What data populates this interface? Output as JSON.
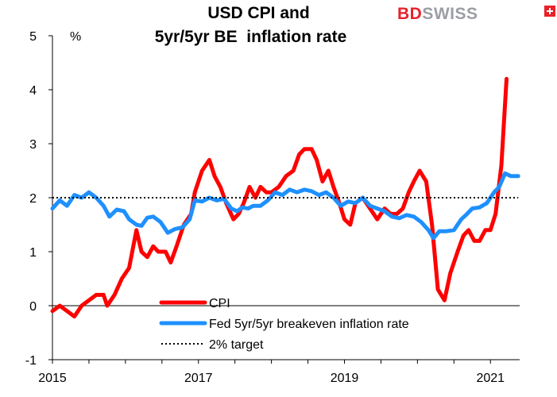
{
  "title_line1": "USD CPI and",
  "title_line2": "5yr/5yr BE  inflation rate",
  "logo": {
    "brand_part1": "BD",
    "brand_part2": "SWISS",
    "flag_icon": "swiss-cross-icon"
  },
  "colors": {
    "cpi": "#ff0000",
    "fed": "#1e90ff",
    "target": "#000000"
  },
  "chart_data": {
    "type": "line",
    "title": "USD CPI and 5yr/5yr BE  inflation rate",
    "ylabel": "%",
    "ylim": [
      -1,
      5
    ],
    "yticks": [
      -1,
      0,
      1,
      2,
      3,
      4,
      5
    ],
    "xlim": [
      2015.0,
      2021.4
    ],
    "xticks": [
      {
        "value": 2015,
        "label": "2015"
      },
      {
        "value": 2017,
        "label": "2017"
      },
      {
        "value": 2019,
        "label": "2019"
      },
      {
        "value": 2021,
        "label": "2021"
      }
    ],
    "grid": false,
    "legend_position": "bottom-center",
    "series": [
      {
        "name": "CPI",
        "color": "#ff0000",
        "points": [
          [
            2015.0,
            -0.1
          ],
          [
            2015.1,
            0.0
          ],
          [
            2015.2,
            -0.1
          ],
          [
            2015.3,
            -0.2
          ],
          [
            2015.4,
            0.0
          ],
          [
            2015.5,
            0.1
          ],
          [
            2015.6,
            0.2
          ],
          [
            2015.7,
            0.2
          ],
          [
            2015.75,
            0.0
          ],
          [
            2015.85,
            0.2
          ],
          [
            2015.95,
            0.5
          ],
          [
            2016.05,
            0.7
          ],
          [
            2016.15,
            1.4
          ],
          [
            2016.22,
            1.0
          ],
          [
            2016.3,
            0.9
          ],
          [
            2016.38,
            1.1
          ],
          [
            2016.45,
            1.0
          ],
          [
            2016.55,
            1.0
          ],
          [
            2016.62,
            0.8
          ],
          [
            2016.7,
            1.1
          ],
          [
            2016.8,
            1.5
          ],
          [
            2016.9,
            1.7
          ],
          [
            2016.95,
            2.1
          ],
          [
            2017.05,
            2.5
          ],
          [
            2017.15,
            2.7
          ],
          [
            2017.22,
            2.4
          ],
          [
            2017.3,
            2.2
          ],
          [
            2017.38,
            1.9
          ],
          [
            2017.48,
            1.6
          ],
          [
            2017.55,
            1.7
          ],
          [
            2017.62,
            1.9
          ],
          [
            2017.7,
            2.2
          ],
          [
            2017.78,
            2.0
          ],
          [
            2017.85,
            2.2
          ],
          [
            2017.93,
            2.1
          ],
          [
            2018.0,
            2.1
          ],
          [
            2018.1,
            2.2
          ],
          [
            2018.2,
            2.4
          ],
          [
            2018.3,
            2.5
          ],
          [
            2018.38,
            2.8
          ],
          [
            2018.45,
            2.9
          ],
          [
            2018.55,
            2.9
          ],
          [
            2018.62,
            2.7
          ],
          [
            2018.7,
            2.3
          ],
          [
            2018.78,
            2.5
          ],
          [
            2018.85,
            2.2
          ],
          [
            2018.93,
            1.9
          ],
          [
            2019.0,
            1.6
          ],
          [
            2019.08,
            1.5
          ],
          [
            2019.15,
            1.9
          ],
          [
            2019.25,
            2.0
          ],
          [
            2019.35,
            1.8
          ],
          [
            2019.45,
            1.6
          ],
          [
            2019.55,
            1.8
          ],
          [
            2019.63,
            1.7
          ],
          [
            2019.72,
            1.7
          ],
          [
            2019.8,
            1.8
          ],
          [
            2019.88,
            2.1
          ],
          [
            2019.95,
            2.3
          ],
          [
            2020.03,
            2.5
          ],
          [
            2020.12,
            2.3
          ],
          [
            2020.2,
            1.5
          ],
          [
            2020.28,
            0.3
          ],
          [
            2020.37,
            0.1
          ],
          [
            2020.45,
            0.6
          ],
          [
            2020.55,
            1.0
          ],
          [
            2020.63,
            1.3
          ],
          [
            2020.7,
            1.4
          ],
          [
            2020.78,
            1.2
          ],
          [
            2020.85,
            1.2
          ],
          [
            2020.93,
            1.4
          ],
          [
            2021.0,
            1.4
          ],
          [
            2021.07,
            1.7
          ],
          [
            2021.15,
            2.6
          ],
          [
            2021.22,
            4.2
          ]
        ]
      },
      {
        "name": "Fed 5yr/5yr breakeven inflation rate",
        "color": "#1e90ff",
        "points": [
          [
            2015.0,
            1.8
          ],
          [
            2015.1,
            1.95
          ],
          [
            2015.2,
            1.85
          ],
          [
            2015.3,
            2.05
          ],
          [
            2015.4,
            2.0
          ],
          [
            2015.5,
            2.1
          ],
          [
            2015.6,
            2.0
          ],
          [
            2015.7,
            1.85
          ],
          [
            2015.78,
            1.65
          ],
          [
            2015.88,
            1.78
          ],
          [
            2015.98,
            1.75
          ],
          [
            2016.05,
            1.6
          ],
          [
            2016.15,
            1.5
          ],
          [
            2016.22,
            1.48
          ],
          [
            2016.3,
            1.63
          ],
          [
            2016.38,
            1.65
          ],
          [
            2016.48,
            1.55
          ],
          [
            2016.58,
            1.35
          ],
          [
            2016.68,
            1.42
          ],
          [
            2016.78,
            1.45
          ],
          [
            2016.88,
            1.6
          ],
          [
            2016.95,
            1.95
          ],
          [
            2017.05,
            1.93
          ],
          [
            2017.15,
            2.0
          ],
          [
            2017.25,
            1.95
          ],
          [
            2017.35,
            1.98
          ],
          [
            2017.45,
            1.8
          ],
          [
            2017.53,
            1.75
          ],
          [
            2017.6,
            1.82
          ],
          [
            2017.68,
            1.8
          ],
          [
            2017.75,
            1.85
          ],
          [
            2017.85,
            1.85
          ],
          [
            2017.95,
            1.95
          ],
          [
            2018.05,
            2.1
          ],
          [
            2018.15,
            2.05
          ],
          [
            2018.25,
            2.15
          ],
          [
            2018.35,
            2.1
          ],
          [
            2018.45,
            2.15
          ],
          [
            2018.55,
            2.12
          ],
          [
            2018.65,
            2.05
          ],
          [
            2018.75,
            2.1
          ],
          [
            2018.85,
            2.0
          ],
          [
            2018.95,
            1.85
          ],
          [
            2019.05,
            1.93
          ],
          [
            2019.15,
            1.9
          ],
          [
            2019.25,
            2.0
          ],
          [
            2019.35,
            1.85
          ],
          [
            2019.45,
            1.8
          ],
          [
            2019.55,
            1.75
          ],
          [
            2019.65,
            1.65
          ],
          [
            2019.75,
            1.62
          ],
          [
            2019.85,
            1.68
          ],
          [
            2019.95,
            1.65
          ],
          [
            2020.05,
            1.55
          ],
          [
            2020.15,
            1.4
          ],
          [
            2020.22,
            1.25
          ],
          [
            2020.3,
            1.38
          ],
          [
            2020.4,
            1.38
          ],
          [
            2020.5,
            1.4
          ],
          [
            2020.6,
            1.6
          ],
          [
            2020.68,
            1.7
          ],
          [
            2020.75,
            1.8
          ],
          [
            2020.85,
            1.82
          ],
          [
            2020.95,
            1.9
          ],
          [
            2021.05,
            2.1
          ],
          [
            2021.12,
            2.2
          ],
          [
            2021.2,
            2.45
          ],
          [
            2021.28,
            2.4
          ],
          [
            2021.38,
            2.4
          ]
        ]
      },
      {
        "name": "2% target",
        "color": "#000000",
        "style": "dotted",
        "points": [
          [
            2015.0,
            2.0
          ],
          [
            2021.38,
            2.0
          ]
        ]
      }
    ]
  }
}
